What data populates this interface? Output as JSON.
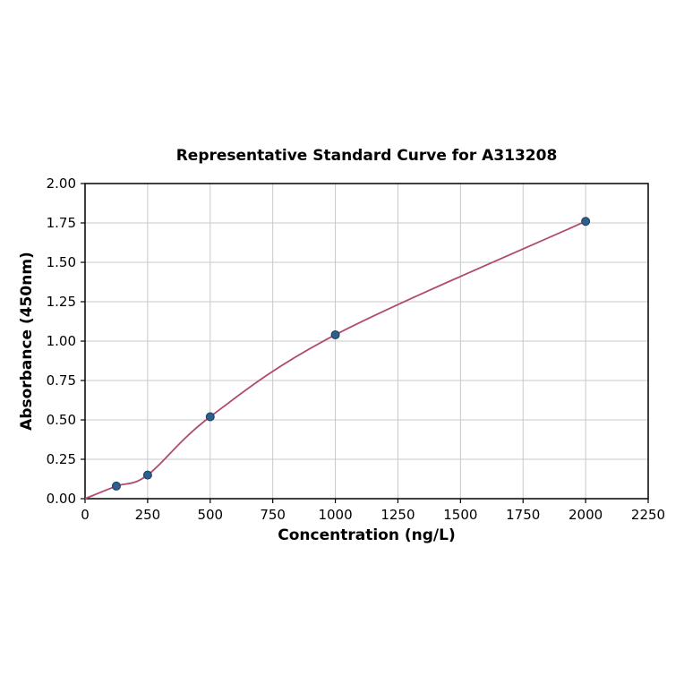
{
  "figure": {
    "title": "Representative Standard Curve for A313208",
    "xlabel": "Concentration (ng/L)",
    "ylabel": "Absorbance (450nm)"
  },
  "chart_data": {
    "type": "scatter",
    "title": "Representative Standard Curve for A313208",
    "xlabel": "Concentration (ng/L)",
    "ylabel": "Absorbance (450nm)",
    "x": [
      125,
      250,
      500,
      1000,
      2000
    ],
    "y": [
      0.08,
      0.15,
      0.52,
      1.04,
      1.76
    ],
    "curve_start": [
      0,
      0
    ],
    "xlim": [
      0,
      2250
    ],
    "ylim": [
      0,
      2.0
    ],
    "xticks": [
      0,
      250,
      500,
      750,
      1000,
      1250,
      1500,
      1750,
      2000,
      2250
    ],
    "xtick_labels": [
      "0",
      "250",
      "500",
      "750",
      "1000",
      "1250",
      "1500",
      "1750",
      "2000",
      "2250"
    ],
    "yticks": [
      0,
      0.25,
      0.5,
      0.75,
      1.0,
      1.25,
      1.5,
      1.75,
      2.0
    ],
    "ytick_labels": [
      "0.00",
      "0.25",
      "0.50",
      "0.75",
      "1.00",
      "1.25",
      "1.50",
      "1.75",
      "2.00"
    ],
    "grid": true,
    "legend": "none",
    "colors": {
      "curve": "#b04a6e",
      "marker_fill": "#2e5f8c",
      "marker_edge": "#1d3d5c",
      "grid": "#c8c8c8",
      "frame": "#000000",
      "background": "#ffffff"
    }
  }
}
